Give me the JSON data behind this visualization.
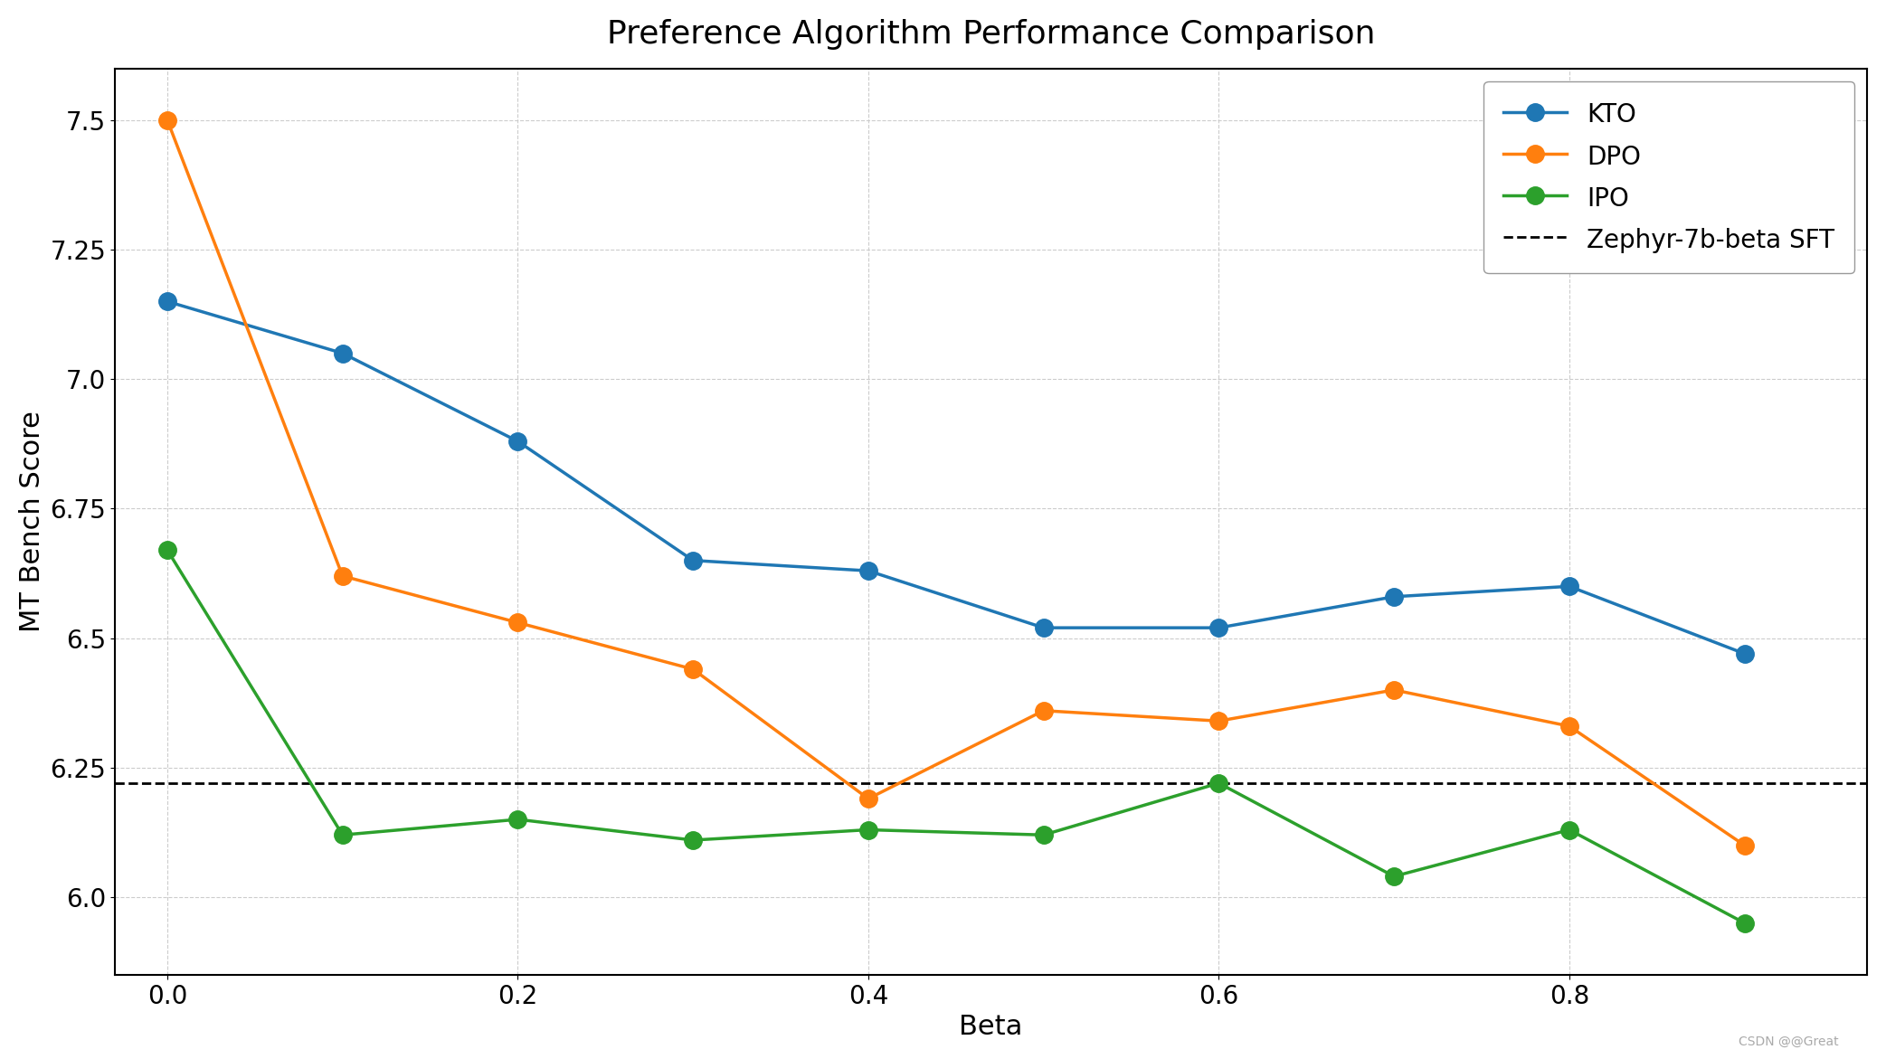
{
  "title": "Preference Algorithm Performance Comparison",
  "xlabel": "Beta",
  "ylabel": "MT Bench Score",
  "beta": [
    0.0,
    0.1,
    0.2,
    0.3,
    0.4,
    0.5,
    0.6,
    0.7,
    0.8,
    0.9
  ],
  "KTO": [
    7.15,
    7.05,
    6.88,
    6.65,
    6.63,
    6.52,
    6.52,
    6.58,
    6.6,
    6.47
  ],
  "DPO": [
    7.5,
    6.62,
    6.53,
    6.44,
    6.19,
    6.36,
    6.34,
    6.4,
    6.33,
    6.1
  ],
  "IPO": [
    6.67,
    6.12,
    6.15,
    6.11,
    6.13,
    6.12,
    6.22,
    6.04,
    6.13,
    5.95
  ],
  "sft_line": 6.22,
  "sft_label": "Zephyr-7b-beta SFT",
  "KTO_color": "#1f77b4",
  "DPO_color": "#ff7f0e",
  "IPO_color": "#2ca02c",
  "sft_color": "black",
  "ylim_min": 5.85,
  "ylim_max": 7.6,
  "xlim_min": -0.03,
  "xlim_max": 0.97,
  "yticks": [
    6.0,
    6.25,
    6.5,
    6.75,
    7.0,
    7.25,
    7.5
  ],
  "xticks": [
    0.0,
    0.2,
    0.4,
    0.6,
    0.8
  ],
  "xtick_labels": [
    "0.0",
    "0.2",
    "0.4",
    "0.6",
    "0.8"
  ],
  "grid": true,
  "marker_size": 14,
  "line_width": 2.5,
  "title_fontsize": 26,
  "label_fontsize": 22,
  "tick_fontsize": 20,
  "legend_fontsize": 20,
  "background_color": "#ffffff",
  "watermark": "CSDN ®®Great",
  "watermark_fontsize": 10
}
